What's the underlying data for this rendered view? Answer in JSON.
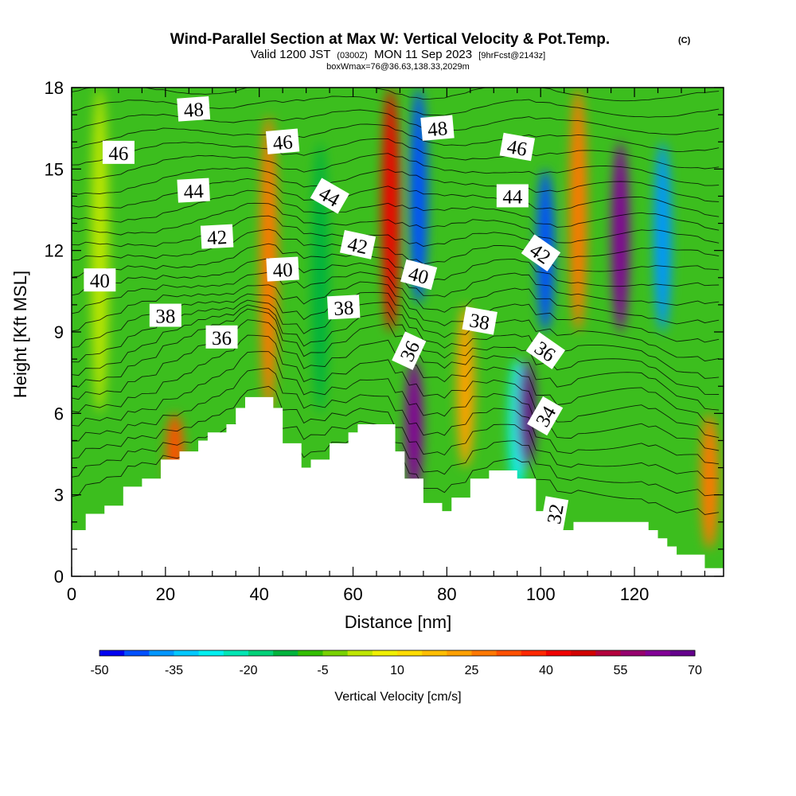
{
  "chart_data": {
    "type": "heatmap",
    "title": "Wind-Parallel Section at Max W: Vertical Velocity & Pot.Temp.",
    "title_mark": "(C)",
    "subtitle_main": "Valid 1200 JST",
    "subtitle_utc": "(0300Z)",
    "subtitle_date": "MON 11 Sep 2023",
    "subtitle_fcst": "[9hrFcst@2143z]",
    "subtitle_box": "boxWmax=76@36.63,138.33,2029m",
    "xlabel": "Distance [nm]",
    "ylabel": "Height [Kft MSL]",
    "xlim": [
      0,
      139
    ],
    "ylim": [
      0,
      18
    ],
    "x_ticks": [
      0,
      20,
      40,
      60,
      80,
      100,
      120
    ],
    "x_tick_labels": [
      "0",
      "20",
      "40",
      "60",
      "80",
      "100",
      "120"
    ],
    "y_ticks": [
      0,
      3,
      6,
      9,
      12,
      15,
      18
    ],
    "y_tick_labels": [
      "0",
      "3",
      "6",
      "9",
      "12",
      "15",
      "18"
    ],
    "colorbar": {
      "label": "Vertical Velocity [cm/s]",
      "min": -50,
      "max": 75,
      "step": 5,
      "tick_values": [
        -50,
        -35,
        -20,
        -5,
        10,
        25,
        40,
        55,
        70
      ],
      "tick_labels": [
        "-50",
        "-35",
        "-20",
        "-5",
        "10",
        "25",
        "40",
        "55",
        "70"
      ],
      "colors": [
        "#0000f0",
        "#0050ff",
        "#0096ff",
        "#00c8ff",
        "#00f0f0",
        "#00e6b4",
        "#00d278",
        "#00b43c",
        "#32be00",
        "#78d200",
        "#bee600",
        "#f0f000",
        "#ffdc00",
        "#ffbe00",
        "#ffa000",
        "#ff7800",
        "#ff5000",
        "#ff2800",
        "#f00000",
        "#d20000",
        "#b4003c",
        "#96006e",
        "#820096",
        "#64008c"
      ]
    },
    "terrain_heights_kft": {
      "x": [
        0,
        3,
        5,
        7,
        9,
        11,
        13,
        15,
        17,
        19,
        21,
        23,
        25,
        27,
        29,
        31,
        33,
        35,
        37,
        39,
        41,
        43,
        45,
        47,
        49,
        51,
        53,
        55,
        57,
        59,
        61,
        63,
        65,
        67,
        69,
        71,
        73,
        75,
        77,
        79,
        81,
        83,
        85,
        87,
        89,
        91,
        93,
        95,
        97,
        99,
        101,
        103,
        105,
        107,
        109,
        111,
        113,
        115,
        117,
        119,
        121,
        123,
        125,
        127,
        129,
        131,
        133,
        135,
        137,
        139
      ],
      "h": [
        1.7,
        2.3,
        2.3,
        2.6,
        2.6,
        3.3,
        3.3,
        3.6,
        3.6,
        4.3,
        4.3,
        4.6,
        4.6,
        5.0,
        5.3,
        5.3,
        5.6,
        6.2,
        6.6,
        6.6,
        6.6,
        6.2,
        4.9,
        4.9,
        4.0,
        4.3,
        4.3,
        4.9,
        4.9,
        5.3,
        5.6,
        5.6,
        5.6,
        5.6,
        4.6,
        3.6,
        3.6,
        2.7,
        2.7,
        2.4,
        2.9,
        2.9,
        3.6,
        3.6,
        3.9,
        3.9,
        3.9,
        3.6,
        3.6,
        2.4,
        2.4,
        1.7,
        1.7,
        2.0,
        2.0,
        2.0,
        2.0,
        2.0,
        2.0,
        2.0,
        2.0,
        1.7,
        1.4,
        1.1,
        0.8,
        0.8,
        0.8,
        0.3,
        0.3,
        0.3
      ]
    },
    "vertical_velocity_features_cm_s": [
      {
        "x": 6,
        "y_range": [
          6,
          18
        ],
        "w": 0
      },
      {
        "x": 22,
        "y_range": [
          3,
          6
        ],
        "w": 30
      },
      {
        "x": 42,
        "y_range": [
          6,
          17
        ],
        "w": 25
      },
      {
        "x": 53,
        "y_range": [
          6,
          16
        ],
        "w": -15
      },
      {
        "x": 68,
        "y_range": [
          9,
          18
        ],
        "w": 40
      },
      {
        "x": 74,
        "y_range": [
          10,
          18
        ],
        "w": -45
      },
      {
        "x": 73,
        "y_range": [
          3,
          8
        ],
        "w": 60
      },
      {
        "x": 84,
        "y_range": [
          4,
          10
        ],
        "w": 20
      },
      {
        "x": 95,
        "y_range": [
          3,
          8
        ],
        "w": -30
      },
      {
        "x": 97,
        "y_range": [
          4,
          8
        ],
        "w": 70
      },
      {
        "x": 101,
        "y_range": [
          9,
          15
        ],
        "w": -45
      },
      {
        "x": 108,
        "y_range": [
          9,
          18
        ],
        "w": 25
      },
      {
        "x": 117,
        "y_range": [
          9,
          16
        ],
        "w": 60
      },
      {
        "x": 126,
        "y_range": [
          9,
          16
        ],
        "w": -40
      },
      {
        "x": 136,
        "y_range": [
          1,
          6
        ],
        "w": 25
      }
    ],
    "potential_temperature_labels": [
      {
        "x": 26,
        "y": 17.2,
        "value": "48",
        "angle": -4
      },
      {
        "x": 78,
        "y": 16.5,
        "value": "48",
        "angle": -5
      },
      {
        "x": 10,
        "y": 15.6,
        "value": "46",
        "angle": 0
      },
      {
        "x": 45,
        "y": 16.0,
        "value": "46",
        "angle": -5
      },
      {
        "x": 95,
        "y": 15.8,
        "value": "46",
        "angle": 10
      },
      {
        "x": 26,
        "y": 14.2,
        "value": "44",
        "angle": -3
      },
      {
        "x": 55,
        "y": 14.0,
        "value": "44",
        "angle": 30
      },
      {
        "x": 94,
        "y": 14.0,
        "value": "44",
        "angle": 0
      },
      {
        "x": 31,
        "y": 12.5,
        "value": "42",
        "angle": -3
      },
      {
        "x": 61,
        "y": 12.2,
        "value": "42",
        "angle": 12
      },
      {
        "x": 100,
        "y": 11.9,
        "value": "42",
        "angle": 35
      },
      {
        "x": 6,
        "y": 10.9,
        "value": "40",
        "angle": 0
      },
      {
        "x": 45,
        "y": 11.3,
        "value": "40",
        "angle": -3
      },
      {
        "x": 74,
        "y": 11.1,
        "value": "40",
        "angle": 15
      },
      {
        "x": 20,
        "y": 9.6,
        "value": "38",
        "angle": 0
      },
      {
        "x": 58,
        "y": 9.9,
        "value": "38",
        "angle": -3
      },
      {
        "x": 87,
        "y": 9.4,
        "value": "38",
        "angle": 10
      },
      {
        "x": 32,
        "y": 8.8,
        "value": "36",
        "angle": 0
      },
      {
        "x": 72,
        "y": 8.3,
        "value": "36",
        "angle": -65
      },
      {
        "x": 101,
        "y": 8.3,
        "value": "36",
        "angle": 35
      },
      {
        "x": 101,
        "y": 5.9,
        "value": "34",
        "angle": -60
      },
      {
        "x": 103,
        "y": 2.3,
        "value": "32",
        "angle": -80
      }
    ],
    "grid": false,
    "legend": "colorbar-bottom"
  }
}
